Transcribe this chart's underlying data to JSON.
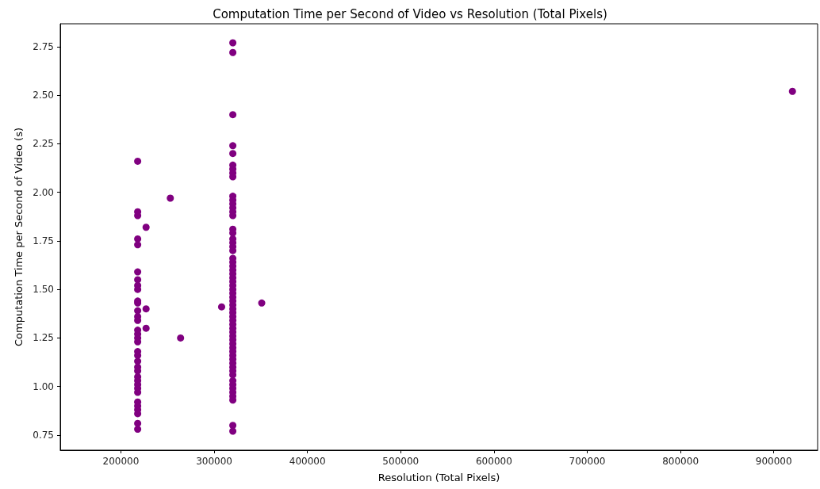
{
  "chart_data": {
    "type": "scatter",
    "title": "Computation Time per Second of Video vs Resolution (Total Pixels)",
    "xlabel": "Resolution (Total Pixels)",
    "ylabel": "Computation Time per Second of Video (s)",
    "marker": "circle",
    "grid": false,
    "xlim": [
      135000,
      947000
    ],
    "xticks": [
      200000,
      300000,
      400000,
      500000,
      600000,
      700000,
      800000,
      900000
    ],
    "ylim": [
      0.672,
      2.868
    ],
    "yticks": [
      0.75,
      {
        "value": 1,
        "label": "1.00"
      },
      1.25,
      {
        "value": 1.5,
        "label": "1.50"
      },
      1.75,
      {
        "value": 2,
        "label": "2.00"
      },
      2.25,
      {
        "value": 2.5,
        "label": "2.50"
      },
      2.75
    ],
    "series": [
      {
        "color": "#800080",
        "x": [
          218000,
          218000,
          218000,
          218000,
          218000,
          218000,
          218000,
          218000,
          218000,
          218000,
          218000,
          218000,
          218000,
          218000,
          218000,
          218000,
          218000,
          218000,
          218000,
          218000,
          218000,
          218000,
          218000,
          218000,
          218000,
          218000,
          218000,
          218000,
          218000,
          218000,
          218000,
          218000,
          218000,
          218000,
          227000,
          227000,
          227000,
          264000,
          253000,
          320000,
          320000,
          320000,
          320000,
          320000,
          320000,
          320000,
          320000,
          320000,
          320000,
          320000,
          320000,
          320000,
          320000,
          320000,
          320000,
          320000,
          320000,
          320000,
          320000,
          320000,
          320000,
          320000,
          320000,
          320000,
          320000,
          320000,
          320000,
          320000,
          320000,
          320000,
          320000,
          320000,
          320000,
          320000,
          320000,
          320000,
          320000,
          320000,
          320000,
          320000,
          320000,
          320000,
          320000,
          320000,
          320000,
          320000,
          320000,
          320000,
          320000,
          320000,
          320000,
          320000,
          320000,
          320000,
          320000,
          320000,
          320000,
          320000,
          320000,
          308000,
          351000,
          920000
        ],
        "values": [
          2.16,
          1.9,
          1.88,
          1.76,
          1.73,
          1.59,
          1.55,
          1.52,
          1.5,
          1.44,
          1.43,
          1.39,
          1.36,
          1.34,
          1.29,
          1.27,
          1.25,
          1.23,
          1.18,
          1.16,
          1.13,
          1.1,
          1.08,
          1.05,
          1.03,
          1.01,
          0.99,
          0.97,
          0.92,
          0.9,
          0.88,
          0.86,
          0.81,
          0.78,
          1.82,
          1.4,
          1.3,
          1.25,
          1.97,
          2.77,
          2.72,
          2.4,
          2.24,
          2.2,
          2.14,
          2.12,
          2.1,
          2.08,
          1.98,
          1.96,
          1.94,
          1.92,
          1.9,
          1.88,
          1.81,
          1.79,
          1.76,
          1.74,
          1.72,
          1.7,
          1.66,
          1.64,
          1.62,
          1.6,
          1.58,
          1.56,
          1.54,
          1.52,
          1.5,
          1.48,
          1.46,
          1.44,
          1.42,
          1.4,
          1.38,
          1.36,
          1.34,
          1.32,
          1.3,
          1.28,
          1.26,
          1.24,
          1.22,
          1.2,
          1.18,
          1.16,
          1.14,
          1.12,
          1.1,
          1.08,
          1.06,
          1.03,
          1.01,
          0.99,
          0.97,
          0.95,
          0.93,
          0.8,
          0.77,
          1.41,
          1.43,
          2.52
        ]
      }
    ]
  }
}
